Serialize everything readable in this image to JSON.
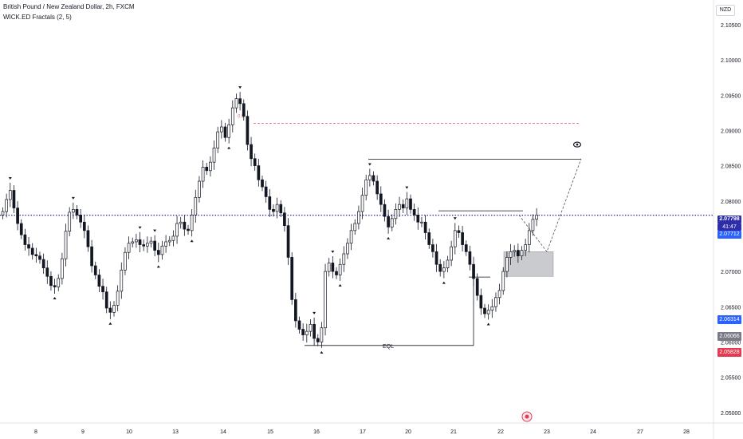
{
  "header": {
    "symbol_line": "British Pound / New Zealand Dollar, 2h, FXCM",
    "indicator_line": "WICK.ED Fractals (2, 5)"
  },
  "currency_badge": "NZD",
  "annotations": {
    "eql_label": "EQL",
    "fractal_label": "0.5"
  },
  "price_tags": {
    "current_price": "2.07798",
    "countdown": "41:47",
    "level_blue_1": "2.07712",
    "level_blue_2": "2.06314",
    "level_gray": "2.06066",
    "level_red": "2.05828"
  },
  "colors": {
    "candle_outline": "#131722",
    "candle_up_fill": "#ffffff",
    "candle_down_fill": "#131722",
    "current_price_line": "#2e2ea8",
    "current_tag_bg": "#2e2ea8",
    "blue_tag_bg": "#2962ff",
    "gray_tag_bg": "#787b86",
    "red_tag_bg": "#e53b52",
    "dashed_red": "#e0707a",
    "target_box": "#b7b9bf"
  },
  "chart_data": {
    "type": "candlestick",
    "title": "British Pound / New Zealand Dollar, 2h, FXCM",
    "y_axis": {
      "ticks": [
        "2.10500",
        "2.10000",
        "2.09500",
        "2.09000",
        "2.08500",
        "2.08000",
        "2.07500",
        "2.07000",
        "2.06500",
        "2.06000",
        "2.05500",
        "2.05000"
      ],
      "range": [
        2.0485,
        2.1085
      ]
    },
    "x_axis": {
      "ticks": [
        "8",
        "9",
        "10",
        "13",
        "14",
        "15",
        "16",
        "17",
        "20",
        "21",
        "22",
        "23",
        "24",
        "27",
        "28"
      ]
    },
    "close_path": [
      2.0785,
      2.0802,
      2.0815,
      2.079,
      2.0768,
      2.0752,
      2.0738,
      2.0733,
      2.0724,
      2.0722,
      2.0717,
      2.0705,
      2.0693,
      2.068,
      2.0678,
      2.069,
      2.0718,
      2.0757,
      2.0784,
      2.0788,
      2.078,
      2.077,
      2.0758,
      2.0735,
      2.0708,
      2.0695,
      2.0679,
      2.0671,
      2.0648,
      2.0642,
      2.0652,
      2.0672,
      2.0702,
      2.0727,
      2.074,
      2.0742,
      2.0745,
      2.0738,
      2.0736,
      2.074,
      2.0743,
      2.073,
      2.0724,
      2.0736,
      2.0742,
      2.0744,
      2.075,
      2.0768,
      2.077,
      2.076,
      2.0758,
      2.078,
      2.0805,
      2.0828,
      2.0848,
      2.0843,
      2.0855,
      2.0875,
      2.0898,
      2.0905,
      2.089,
      2.0908,
      2.0932,
      2.0945,
      2.0938,
      2.092,
      2.088,
      2.086,
      2.085,
      2.083,
      2.082,
      2.0806,
      2.0788,
      2.0785,
      2.0795,
      2.0783,
      2.0765,
      2.072,
      2.066,
      2.063,
      2.0618,
      2.061,
      2.0615,
      2.0625,
      2.0605,
      2.06,
      2.062,
      2.07,
      2.0712,
      2.07,
      2.0695,
      2.071,
      2.0725,
      2.074,
      2.0758,
      2.0768,
      2.0785,
      2.0808,
      2.083,
      2.0836,
      2.0828,
      2.081,
      2.0795,
      2.0778,
      2.0763,
      2.0775,
      2.0788,
      2.0795,
      2.079,
      2.0803,
      2.0788,
      2.078,
      2.077,
      2.077,
      2.0755,
      2.0738,
      2.0728,
      2.071,
      2.07,
      2.0705,
      2.0716,
      2.0735,
      2.0758,
      2.0755,
      2.0738,
      2.0728,
      2.071,
      2.069,
      2.0666,
      2.0648,
      2.064,
      2.0645,
      2.065,
      2.0663,
      2.0673,
      2.07,
      2.072,
      2.0728,
      2.073,
      2.0722,
      2.073,
      2.0738,
      2.0758,
      2.0774,
      2.078
    ],
    "key_levels": {
      "upper_target": 2.0859,
      "red_dashed": 2.091,
      "equal_lows": 2.0595,
      "current_price": 2.07798,
      "demand_zone": [
        2.0693,
        2.0728
      ]
    },
    "projection": [
      2.078,
      2.0728,
      2.086
    ],
    "grid": false,
    "legend": "top-left"
  }
}
